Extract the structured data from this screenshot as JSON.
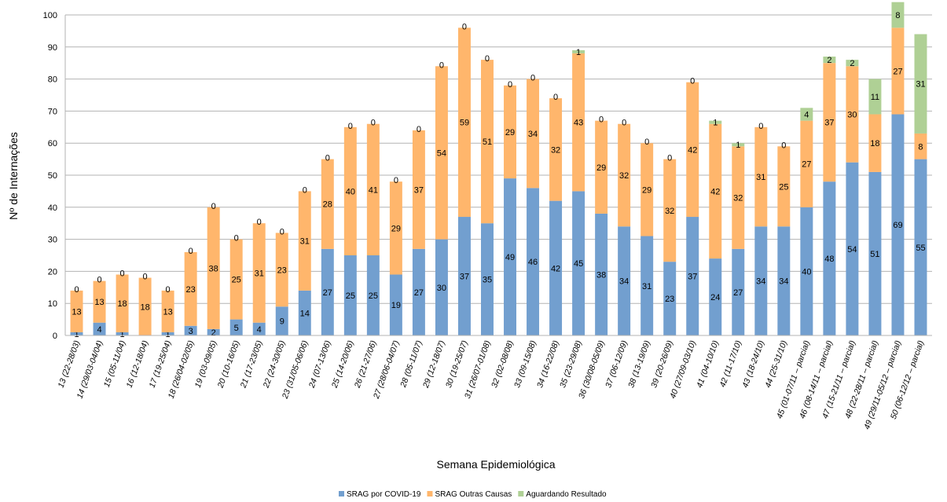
{
  "chart_data": {
    "type": "bar",
    "stacked": true,
    "xlabel": "Semana Epidemiológica",
    "ylabel": "Nº de Internações",
    "ylim": [
      0,
      100
    ],
    "yticks": [
      0,
      10,
      20,
      30,
      40,
      50,
      60,
      70,
      80,
      90,
      100
    ],
    "grid": true,
    "legend": "bottom",
    "categories": [
      "13 (22-28/03)",
      "14 (29/03-04/04)",
      "15 (05-11/04)",
      "16 (12-18/04)",
      "17 (19-25/04)",
      "18 (26/04-02/05)",
      "19 (03-09/05)",
      "20 (10-16/05)",
      "21 (17-23/05)",
      "22 (24-30/05)",
      "23 (31/05-06/06)",
      "24 (07-13/06)",
      "25 (14-20/06)",
      "26 (21-27/06)",
      "27 (28/06-04/07)",
      "28 (05-11/07)",
      "29 (12-18/07)",
      "30 (19-25/07)",
      "31 (26/07-01/08)",
      "32 (02-08/08)",
      "33 (09-15/08)",
      "34 (16-22/08)",
      "35 (23-29/08)",
      "36 (30/08-05/09)",
      "37 (06-12/09)",
      "38 (13-19/09)",
      "39 (20-26/09)",
      "40 (27/09-03/10)",
      "41 (04-10/10)",
      "42 (11-17/10)",
      "43 (18-24/10)",
      "44 (25-31/10)",
      "45 (01-07/11 – parcial)",
      "46 (08-14/11 – parcial)",
      "47 (15-21/11 – parcial)",
      "48 (22-28/11 – parcial)",
      "49 (29/11-05/12 – parcial)",
      "50 (06-12/12 – parcial)"
    ],
    "series": [
      {
        "name": "SRAG por COVID-19",
        "color": "#729fcf",
        "values": [
          1,
          4,
          1,
          0,
          1,
          3,
          2,
          5,
          4,
          9,
          14,
          27,
          25,
          25,
          19,
          27,
          30,
          37,
          35,
          49,
          46,
          42,
          45,
          38,
          34,
          31,
          23,
          37,
          24,
          27,
          34,
          34,
          40,
          48,
          54,
          51,
          69,
          55
        ],
        "show_labels": [
          true,
          true,
          true,
          false,
          true,
          true,
          true,
          true,
          true,
          true,
          true,
          true,
          true,
          true,
          true,
          true,
          true,
          true,
          true,
          true,
          true,
          true,
          true,
          true,
          true,
          true,
          true,
          true,
          true,
          true,
          true,
          true,
          true,
          true,
          true,
          true,
          true,
          true
        ]
      },
      {
        "name": "SRAG Outras Causas",
        "color": "#ffb66c",
        "values": [
          13,
          13,
          18,
          18,
          13,
          23,
          38,
          25,
          31,
          23,
          31,
          28,
          40,
          41,
          29,
          37,
          54,
          59,
          51,
          29,
          34,
          32,
          43,
          29,
          32,
          29,
          32,
          42,
          42,
          32,
          31,
          25,
          27,
          37,
          30,
          18,
          27,
          8
        ]
      },
      {
        "name": "Aguardando Resultado",
        "color": "#afd095",
        "values": [
          0,
          0,
          0,
          0,
          0,
          0,
          0,
          0,
          0,
          0,
          0,
          0,
          0,
          0,
          0,
          0,
          0,
          0,
          0,
          0,
          0,
          0,
          1,
          0,
          0,
          0,
          0,
          0,
          1,
          1,
          0,
          0,
          4,
          2,
          2,
          11,
          8,
          31
        ]
      }
    ]
  }
}
